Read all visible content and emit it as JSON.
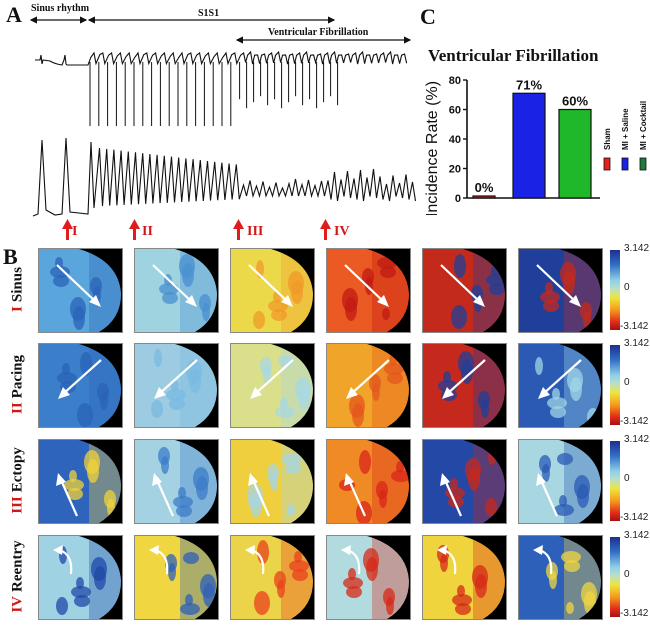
{
  "panel_a": {
    "letter": "A",
    "segments": [
      {
        "label": "Sinus rhythm"
      },
      {
        "label": "S1S1"
      },
      {
        "label": "Ventricular Fibrillation"
      }
    ],
    "markers": [
      "I",
      "II",
      "III",
      "IV"
    ]
  },
  "panel_b": {
    "letter": "B",
    "rows": [
      {
        "numeral": "I",
        "name": "Sinus",
        "arrow": "diag-down-right",
        "maps": [
          "#5aa6dc",
          "#9fd3e0",
          "#ecd94a",
          "#ea5a22",
          "#c42a1c",
          "#1f3f9a"
        ],
        "accents": [
          "#2b63b8",
          "#4a8fd0",
          "#f09a2a",
          "#c21a14",
          "#1f3f9a",
          "#c42a1c"
        ]
      },
      {
        "numeral": "II",
        "name": "Pacing",
        "arrow": "diag-down-left",
        "maps": [
          "#3b7fcb",
          "#9ccbe2",
          "#d9df8a",
          "#f0a52a",
          "#c5281c",
          "#2a5ab4"
        ],
        "accents": [
          "#2a63b5",
          "#7ab9e0",
          "#a8d8e4",
          "#e4571d",
          "#1f3f9a",
          "#9fd6e6"
        ]
      },
      {
        "numeral": "III",
        "name": "Ectopy",
        "arrow": "up-left",
        "maps": [
          "#2e64bc",
          "#a4d2e2",
          "#f0cf3f",
          "#f08a25",
          "#2448a6",
          "#a8d7e2"
        ],
        "accents": [
          "#f0d23a",
          "#3c7cc8",
          "#a6d6e4",
          "#d9251a",
          "#c5281c",
          "#2a5ab4"
        ]
      },
      {
        "numeral": "IV",
        "name": "Reentry",
        "arrow": "curved",
        "maps": [
          "#9fd2e2",
          "#f0d640",
          "#ecd44a",
          "#b2dbe0",
          "#f0d43e",
          "#2d60b8"
        ],
        "accents": [
          "#1f4aa8",
          "#2d60b8",
          "#e8421c",
          "#d62a18",
          "#d62a18",
          "#f0d640"
        ]
      }
    ],
    "colorbar": {
      "max": "3.142",
      "mid": "0",
      "min": "-3.142"
    }
  },
  "panel_c": {
    "letter": "C"
  },
  "chart_data": {
    "type": "bar",
    "title": "Ventricular Fibrillation",
    "xlabel": "",
    "ylabel": "Incidence Rate (%)",
    "ylim": [
      0,
      80
    ],
    "yticks": [
      "0",
      "20",
      "40",
      "60",
      "80"
    ],
    "categories": [
      "Sham",
      "MI + Saline",
      "MI + Cocktail"
    ],
    "values": [
      0,
      71,
      60
    ],
    "data_labels": [
      "0%",
      "71%",
      "60%"
    ],
    "colors": [
      "#e8201c",
      "#1a22e6",
      "#1fb82a"
    ],
    "legend": {
      "placement": "right",
      "entries": [
        {
          "label": "Sham",
          "color": "#e8201c"
        },
        {
          "label": "MI + Saline",
          "color": "#1a22e6"
        },
        {
          "label": "MI + Cocktail",
          "color": "#1f7a3c"
        }
      ]
    },
    "grid": false
  }
}
